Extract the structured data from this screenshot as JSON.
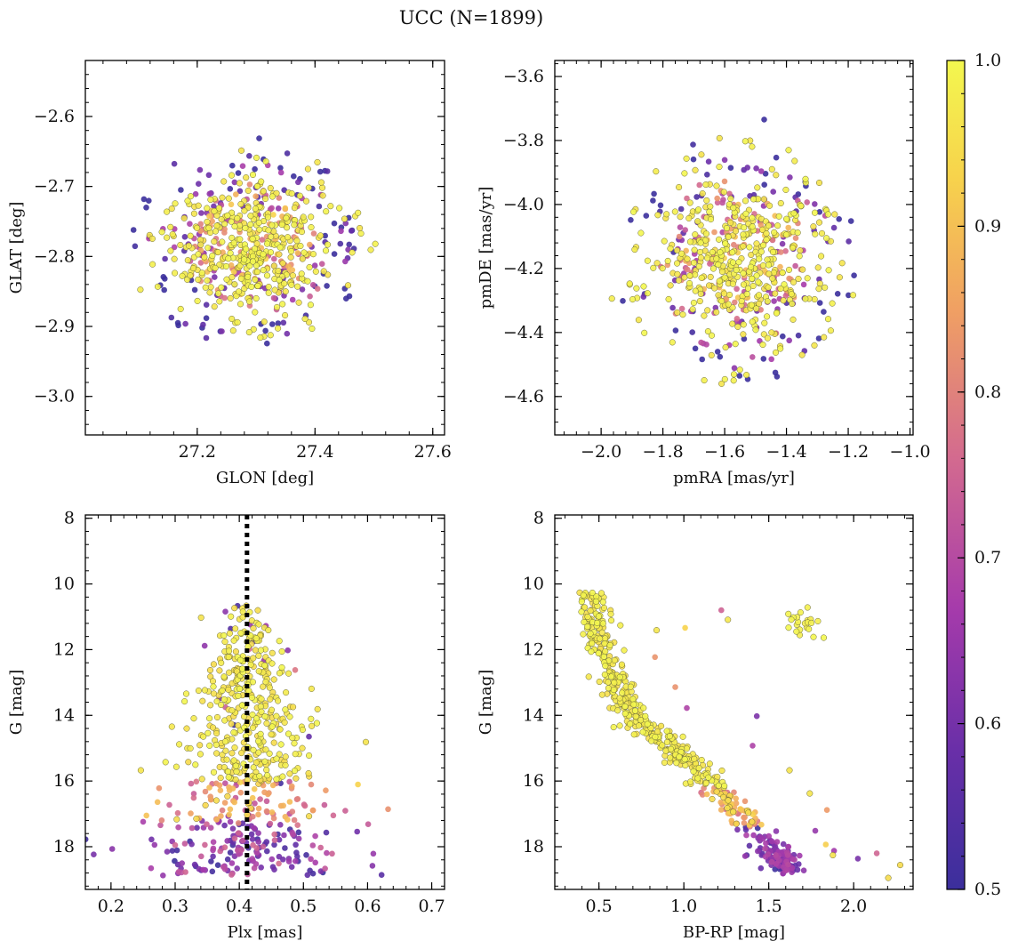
{
  "figure": {
    "title": "UCC (N=1899)"
  },
  "colorbar": {
    "range": [
      0.5,
      1.0
    ],
    "ticks": [
      0.5,
      0.6,
      0.7,
      0.8,
      0.9,
      1.0
    ],
    "tick_labels": [
      "0.5",
      "0.6",
      "0.7",
      "0.8",
      "0.9",
      "1.0"
    ],
    "colormap": "plasma",
    "stops": [
      "#3b2f9c",
      "#6a2fa8",
      "#a63bab",
      "#d36a8f",
      "#f0a063",
      "#f7d34c",
      "#f3f74f"
    ]
  },
  "chart_data": [
    {
      "id": "glon-glat",
      "type": "scatter",
      "title": "",
      "xlabel": "GLON [deg]",
      "ylabel": "GLAT [deg]",
      "xlim": [
        27.01,
        27.62
      ],
      "ylim": [
        -3.055,
        -2.52
      ],
      "y_inverted": false,
      "xticks": [
        27.2,
        27.4,
        27.6
      ],
      "xtick_labels": [
        "27.2",
        "27.4",
        "27.6"
      ],
      "yticks": [
        -2.6,
        -2.7,
        -2.8,
        -2.9,
        -3.0
      ],
      "ytick_labels": [
        "−2.6",
        "−2.7",
        "−2.8",
        "−2.9",
        "−3.0"
      ],
      "cluster": {
        "x_center": 27.29,
        "x_spread": 0.09,
        "y_center": -2.785,
        "y_spread": 0.062
      },
      "reference_line": null
    },
    {
      "id": "pmra-pmde",
      "type": "scatter",
      "title": "",
      "xlabel": "pmRA [mas/yr]",
      "ylabel": "pmDE [mas/yr]",
      "xlim": [
        -2.15,
        -0.99
      ],
      "ylim": [
        -4.72,
        -3.55
      ],
      "y_inverted": false,
      "xticks": [
        -2.0,
        -1.8,
        -1.6,
        -1.4,
        -1.2,
        -1.0
      ],
      "xtick_labels": [
        "−2.0",
        "−1.8",
        "−1.6",
        "−1.4",
        "−1.2",
        "−1.0"
      ],
      "yticks": [
        -3.6,
        -3.8,
        -4.0,
        -4.2,
        -4.4,
        -4.6
      ],
      "ytick_labels": [
        "−3.6",
        "−3.8",
        "−4.0",
        "−4.2",
        "−4.4",
        "−4.6"
      ],
      "cluster": {
        "x_center": -1.55,
        "x_spread": 0.17,
        "y_center": -4.17,
        "y_spread": 0.17
      },
      "reference_line": null
    },
    {
      "id": "plx-g",
      "type": "scatter",
      "title": "",
      "xlabel": "Plx [mas]",
      "ylabel": "G [mag]",
      "xlim": [
        0.16,
        0.72
      ],
      "ylim": [
        7.9,
        19.3
      ],
      "y_inverted": true,
      "xticks": [
        0.2,
        0.3,
        0.4,
        0.5,
        0.6,
        0.7
      ],
      "xtick_labels": [
        "0.2",
        "0.3",
        "0.4",
        "0.5",
        "0.6",
        "0.7"
      ],
      "yticks": [
        8,
        10,
        12,
        14,
        16,
        18
      ],
      "ytick_labels": [
        "8",
        "10",
        "12",
        "14",
        "16",
        "18"
      ],
      "cluster": {
        "x_center": 0.412,
        "x_spread": 0.06,
        "y_min": 10.5,
        "y_max": 18.9
      },
      "reference_line": {
        "axis": "x",
        "value": 0.412,
        "style": "dotted"
      }
    },
    {
      "id": "bprp-g",
      "type": "scatter",
      "title": "",
      "xlabel": "BP-RP [mag]",
      "ylabel": "G [mag]",
      "xlim": [
        0.24,
        2.35
      ],
      "ylim": [
        7.9,
        19.3
      ],
      "y_inverted": true,
      "xticks": [
        0.5,
        1.0,
        1.5,
        2.0
      ],
      "xtick_labels": [
        "0.5",
        "1.0",
        "1.5",
        "2.0"
      ],
      "yticks": [
        8,
        10,
        12,
        14,
        16,
        18
      ],
      "ytick_labels": [
        "8",
        "10",
        "12",
        "14",
        "16",
        "18"
      ],
      "sequence": {
        "main_sequence": [
          [
            0.45,
            10.4
          ],
          [
            0.55,
            12.5
          ],
          [
            0.7,
            14.0
          ],
          [
            1.0,
            15.3
          ],
          [
            1.3,
            16.8
          ],
          [
            1.55,
            18.3
          ],
          [
            1.6,
            18.6
          ]
        ],
        "red_clump": {
          "x_center": 1.72,
          "y_center": 11.2
        }
      },
      "reference_line": null
    }
  ]
}
